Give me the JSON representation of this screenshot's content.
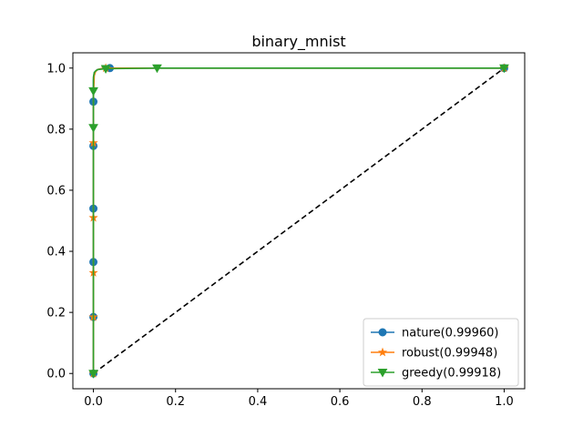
{
  "chart_data": {
    "type": "line",
    "title": "binary_mnist",
    "xlabel": "",
    "ylabel": "",
    "xlim": [
      -0.05,
      1.05
    ],
    "ylim": [
      -0.05,
      1.05
    ],
    "x_ticks": [
      0.0,
      0.2,
      0.4,
      0.6,
      0.8,
      1.0
    ],
    "x_tick_labels": [
      "0.0",
      "0.2",
      "0.4",
      "0.6",
      "0.8",
      "1.0"
    ],
    "y_ticks": [
      0.0,
      0.2,
      0.4,
      0.6,
      0.8,
      1.0
    ],
    "y_tick_labels": [
      "0.0",
      "0.2",
      "0.4",
      "0.6",
      "0.8",
      "1.0"
    ],
    "grid": false,
    "legend_position": "lower right",
    "series": [
      {
        "name": "nature(0.99960)",
        "color": "#1f77b4",
        "marker": "circle",
        "x": [
          0.0,
          0.0,
          0.0,
          0.0,
          0.0,
          0.0,
          0.0,
          0.002,
          0.005,
          0.01,
          0.02,
          0.04,
          1.0
        ],
        "y": [
          0.0,
          0.185,
          0.365,
          0.54,
          0.745,
          0.89,
          0.96,
          0.985,
          0.99,
          0.995,
          0.998,
          1.0,
          1.0
        ],
        "marker_indices": [
          0,
          1,
          2,
          3,
          4,
          5,
          11,
          12
        ]
      },
      {
        "name": "robust(0.99948)",
        "color": "#ff7f0e",
        "marker": "star",
        "x": [
          0.0,
          0.0,
          0.0,
          0.0,
          0.0,
          0.0,
          0.002,
          0.005,
          0.01,
          0.02,
          0.03,
          1.0
        ],
        "y": [
          0.0,
          0.185,
          0.33,
          0.51,
          0.755,
          0.9,
          0.975,
          0.988,
          0.995,
          0.998,
          1.0,
          1.0
        ],
        "marker_indices": [
          0,
          1,
          2,
          3,
          4,
          10,
          11
        ]
      },
      {
        "name": "greedy(0.99918)",
        "color": "#2ca02c",
        "marker": "triangle-down",
        "x": [
          0.0,
          0.0,
          0.0,
          0.0,
          0.002,
          0.005,
          0.01,
          0.03,
          0.155,
          1.0
        ],
        "y": [
          0.0,
          0.805,
          0.925,
          0.97,
          0.985,
          0.99,
          0.995,
          0.998,
          1.0,
          1.0
        ],
        "marker_indices": [
          0,
          1,
          2,
          7,
          8,
          9
        ]
      },
      {
        "name": "",
        "color": "#000000",
        "style": "dashed",
        "x": [
          0.0,
          1.0
        ],
        "y": [
          0.0,
          1.0
        ]
      }
    ]
  }
}
